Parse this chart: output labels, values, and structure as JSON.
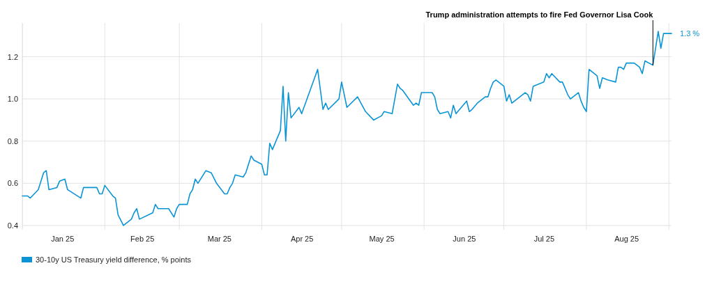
{
  "chart_data": {
    "type": "line",
    "x": [
      "2025-01-01",
      "2025-01-03",
      "2025-01-04",
      "2025-01-07",
      "2025-01-09",
      "2025-01-10",
      "2025-01-11",
      "2025-01-14",
      "2025-01-15",
      "2025-01-17",
      "2025-01-18",
      "2025-01-23",
      "2025-01-24",
      "2025-01-29",
      "2025-01-30",
      "2025-01-31",
      "2025-02-01",
      "2025-02-04",
      "2025-02-05",
      "2025-02-06",
      "2025-02-08",
      "2025-02-11",
      "2025-02-12",
      "2025-02-13",
      "2025-02-14",
      "2025-02-19",
      "2025-02-20",
      "2025-02-21",
      "2025-02-25",
      "2025-02-27",
      "2025-02-28",
      "2025-03-01",
      "2025-03-04",
      "2025-03-05",
      "2025-03-06",
      "2025-03-07",
      "2025-03-08",
      "2025-03-11",
      "2025-03-13",
      "2025-03-15",
      "2025-03-18",
      "2025-03-19",
      "2025-03-20",
      "2025-03-21",
      "2025-03-22",
      "2025-03-25",
      "2025-03-26",
      "2025-03-28",
      "2025-03-29",
      "2025-04-01",
      "2025-04-02",
      "2025-04-03",
      "2025-04-04",
      "2025-04-05",
      "2025-04-08",
      "2025-04-09",
      "2025-04-10",
      "2025-04-11",
      "2025-04-12",
      "2025-04-15",
      "2025-04-16",
      "2025-04-22",
      "2025-04-24",
      "2025-04-25",
      "2025-04-26",
      "2025-04-30",
      "2025-05-01",
      "2025-05-03",
      "2025-05-07",
      "2025-05-10",
      "2025-05-13",
      "2025-05-16",
      "2025-05-17",
      "2025-05-20",
      "2025-05-22",
      "2025-05-23",
      "2025-05-24",
      "2025-05-28",
      "2025-05-29",
      "2025-05-30",
      "2025-05-31",
      "2025-06-04",
      "2025-06-05",
      "2025-06-06",
      "2025-06-07",
      "2025-06-10",
      "2025-06-11",
      "2025-06-12",
      "2025-06-13",
      "2025-06-17",
      "2025-06-18",
      "2025-06-19",
      "2025-06-21",
      "2025-06-24",
      "2025-06-25",
      "2025-06-26",
      "2025-06-27",
      "2025-06-28",
      "2025-07-01",
      "2025-07-02",
      "2025-07-03",
      "2025-07-04",
      "2025-07-06",
      "2025-07-08",
      "2025-07-09",
      "2025-07-10",
      "2025-07-11",
      "2025-07-12",
      "2025-07-16",
      "2025-07-17",
      "2025-07-18",
      "2025-07-19",
      "2025-07-22",
      "2025-07-23",
      "2025-07-25",
      "2025-07-26",
      "2025-07-29",
      "2025-07-30",
      "2025-07-31",
      "2025-08-01",
      "2025-08-02",
      "2025-08-05",
      "2025-08-06",
      "2025-08-07",
      "2025-08-09",
      "2025-08-12",
      "2025-08-13",
      "2025-08-14",
      "2025-08-15",
      "2025-08-16",
      "2025-08-19",
      "2025-08-21",
      "2025-08-22",
      "2025-08-23",
      "2025-08-26",
      "2025-08-28",
      "2025-08-29",
      "2025-08-30",
      "2025-09-02"
    ],
    "series": [
      {
        "name": "30-10y US Treasury yield difference, % points",
        "color": "#0a94d6",
        "values": [
          0.54,
          0.54,
          0.53,
          0.57,
          0.65,
          0.66,
          0.57,
          0.58,
          0.61,
          0.62,
          0.57,
          0.53,
          0.58,
          0.58,
          0.55,
          0.55,
          0.59,
          0.54,
          0.53,
          0.45,
          0.4,
          0.43,
          0.46,
          0.48,
          0.43,
          0.46,
          0.5,
          0.48,
          0.48,
          0.44,
          0.48,
          0.5,
          0.5,
          0.55,
          0.57,
          0.62,
          0.6,
          0.66,
          0.65,
          0.6,
          0.55,
          0.55,
          0.58,
          0.6,
          0.64,
          0.63,
          0.65,
          0.73,
          0.71,
          0.69,
          0.64,
          0.64,
          0.79,
          0.76,
          0.85,
          1.06,
          0.8,
          1.03,
          0.91,
          0.96,
          0.93,
          1.14,
          0.95,
          0.98,
          0.95,
          1.0,
          1.08,
          0.96,
          1.01,
          0.94,
          0.9,
          0.92,
          0.94,
          0.93,
          1.07,
          1.05,
          1.04,
          0.97,
          0.98,
          0.97,
          1.03,
          1.03,
          1.01,
          0.95,
          0.93,
          0.94,
          0.91,
          0.97,
          0.93,
          0.99,
          0.94,
          0.95,
          0.98,
          1.01,
          1.01,
          1.05,
          1.08,
          1.09,
          1.06,
          0.99,
          1.02,
          0.98,
          1.0,
          1.02,
          1.03,
          1.02,
          0.99,
          1.06,
          1.08,
          1.12,
          1.1,
          1.12,
          1.08,
          1.08,
          1.02,
          1.0,
          1.03,
          0.99,
          0.96,
          0.94,
          1.14,
          1.11,
          1.05,
          1.1,
          1.09,
          1.08,
          1.15,
          1.15,
          1.14,
          1.17,
          1.17,
          1.15,
          1.12,
          1.18,
          1.16,
          1.32,
          1.24,
          1.31,
          1.31
        ],
        "value_labels": [
          null,
          null,
          null,
          null,
          null,
          null,
          null,
          null,
          null,
          null,
          null,
          null,
          null,
          null,
          null,
          null,
          null,
          null,
          null,
          null,
          null,
          null,
          null,
          null,
          null,
          null,
          null,
          null,
          null,
          null,
          null,
          null,
          null,
          null,
          null,
          null,
          null,
          null,
          null,
          null,
          null,
          null,
          null,
          null,
          null,
          null,
          null,
          null,
          null,
          null,
          null,
          null,
          null,
          null,
          null,
          null,
          null,
          null,
          null,
          null,
          null,
          null,
          null,
          null,
          null,
          null,
          null,
          null,
          null,
          null,
          null,
          null,
          null,
          null,
          null,
          null,
          null,
          null,
          null,
          null,
          null,
          null,
          null,
          null,
          null,
          null,
          null,
          null,
          null,
          null,
          null,
          null,
          null,
          null,
          null,
          null,
          null,
          null,
          null,
          null,
          null,
          null,
          null,
          null,
          null,
          null,
          null,
          null,
          null,
          null,
          null,
          null,
          null,
          null,
          null,
          null,
          null,
          null,
          null,
          null,
          null,
          null,
          null,
          null,
          null,
          null,
          null,
          null,
          null,
          null,
          null,
          null,
          null,
          null,
          null,
          null,
          null,
          null,
          "1.3 %"
        ]
      }
    ],
    "xlim": [
      "2025-01-01",
      "2025-09-02"
    ],
    "xticks": [
      {
        "value": "2025-01-01",
        "label": null
      },
      {
        "value": "2025-01-16",
        "label": "Jan 25"
      },
      {
        "value": "2025-02-01",
        "label": null
      },
      {
        "value": "2025-02-15",
        "label": "Feb 25"
      },
      {
        "value": "2025-03-01",
        "label": null
      },
      {
        "value": "2025-03-16",
        "label": "Mar 25"
      },
      {
        "value": "2025-04-01",
        "label": null
      },
      {
        "value": "2025-04-16",
        "label": "Apr 25"
      },
      {
        "value": "2025-05-01",
        "label": null
      },
      {
        "value": "2025-05-16",
        "label": "May 25"
      },
      {
        "value": "2025-06-01",
        "label": null
      },
      {
        "value": "2025-06-16",
        "label": "Jun 25"
      },
      {
        "value": "2025-07-01",
        "label": null
      },
      {
        "value": "2025-07-16",
        "label": "Jul 25"
      },
      {
        "value": "2025-08-01",
        "label": null
      },
      {
        "value": "2025-08-16",
        "label": "Aug 25"
      },
      {
        "value": "2025-09-01",
        "label": null
      }
    ],
    "ylim": [
      0.39,
      1.36
    ],
    "yticks": [
      0.4,
      0.6,
      0.8,
      {
        "value": 1,
        "label": "1.0"
      },
      1.2
    ],
    "grid": true,
    "legend": "bottom left",
    "annotations": [
      {
        "text": "Trump administration attempts to fire Fed Governor Lisa Cook",
        "x": "2025-08-26",
        "y": 1.16
      }
    ]
  }
}
